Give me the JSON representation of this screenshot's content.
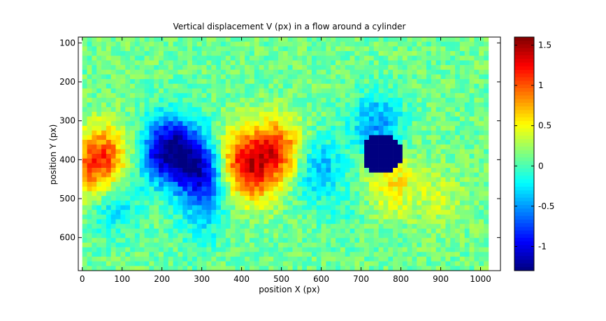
{
  "chart_data": {
    "type": "heatmap",
    "title": "Vertical displacement V (px) in a flow around a cylinder",
    "xlabel": "position X (px)",
    "ylabel": "position Y (px)",
    "xlim": [
      -10,
      1050
    ],
    "ylim": [
      685,
      85
    ],
    "y_axis_direction": "reversed",
    "x_ticks": [
      0,
      100,
      200,
      300,
      400,
      500,
      600,
      700,
      800,
      900,
      1000
    ],
    "y_ticks": [
      100,
      200,
      300,
      400,
      500,
      600
    ],
    "data_extent": {
      "x": [
        0,
        1020
      ],
      "y": [
        85,
        685
      ]
    },
    "colormap": "jet",
    "colorbar": {
      "range": [
        -1.3,
        1.6
      ],
      "ticks": [
        1.5,
        1,
        0.5,
        0,
        -0.5,
        -1
      ],
      "tick_labels": [
        "1.5",
        "1",
        "0.5",
        "0",
        "-0.5",
        "-1"
      ]
    },
    "background_value": 0.1,
    "features": [
      {
        "kind": "gaussian",
        "x": 60,
        "y": 385,
        "value": 0.75
      },
      {
        "kind": "gaussian",
        "x": 15,
        "y": 430,
        "value": 0.6
      },
      {
        "kind": "gaussian",
        "x": 200,
        "y": 390,
        "value": -0.8
      },
      {
        "kind": "gaussian",
        "x": 280,
        "y": 410,
        "value": -0.85
      },
      {
        "kind": "gaussian",
        "x": 230,
        "y": 340,
        "value": -0.5
      },
      {
        "kind": "gaussian",
        "x": 310,
        "y": 460,
        "value": -0.5
      },
      {
        "kind": "gaussian",
        "x": 400,
        "y": 400,
        "value": 0.9
      },
      {
        "kind": "gaussian",
        "x": 490,
        "y": 375,
        "value": 1.0
      },
      {
        "kind": "gaussian",
        "x": 430,
        "y": 455,
        "value": 0.5
      },
      {
        "kind": "gaussian",
        "x": 590,
        "y": 420,
        "value": -0.5
      },
      {
        "kind": "gaussian",
        "x": 740,
        "y": 310,
        "value": -0.6
      },
      {
        "kind": "gaussian",
        "x": 780,
        "y": 460,
        "value": 0.5
      },
      {
        "kind": "gaussian",
        "x": 900,
        "y": 500,
        "value": 0.25
      },
      {
        "kind": "gaussian",
        "x": 80,
        "y": 520,
        "value": -0.35
      },
      {
        "kind": "gaussian",
        "x": 300,
        "y": 560,
        "value": -0.25
      },
      {
        "kind": "gaussian",
        "x": 650,
        "y": 530,
        "value": -0.1
      },
      {
        "kind": "disk",
        "label": "cylinder",
        "x": 755,
        "y": 385,
        "r": 52,
        "value": -1.3
      }
    ]
  }
}
